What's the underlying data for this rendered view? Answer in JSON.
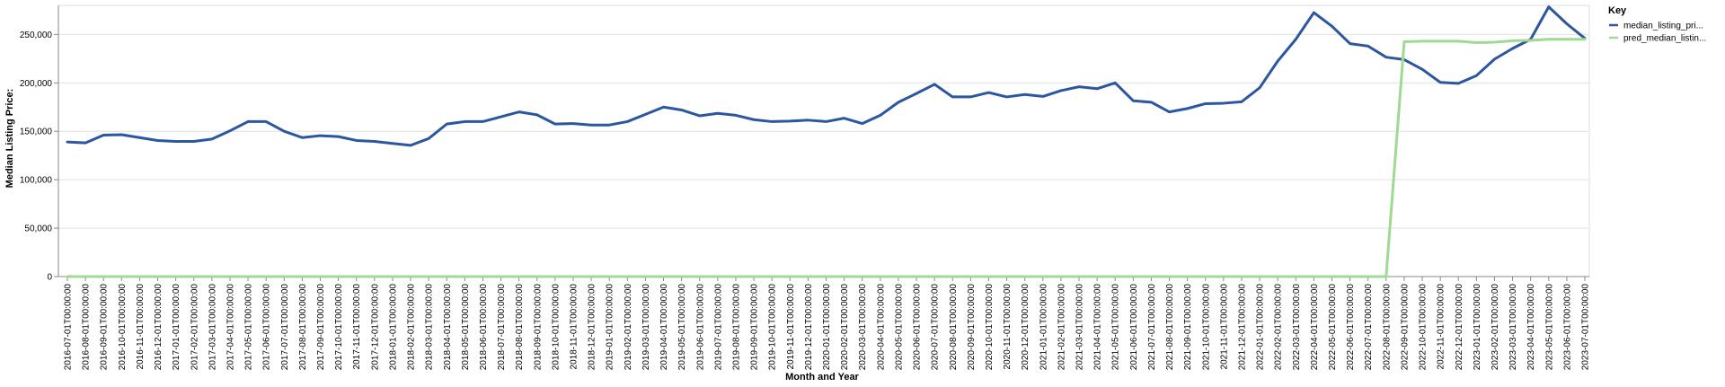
{
  "chart_data": {
    "type": "line",
    "title": "",
    "xlabel": "Month and Year",
    "ylabel": "Median Listing Price:",
    "ylim": [
      0,
      280000
    ],
    "y_ticks": [
      0,
      50000,
      100000,
      150000,
      200000,
      250000
    ],
    "y_tick_labels": [
      "0",
      "50,000",
      "100,000",
      "150,000",
      "200,000",
      "250,000"
    ],
    "grid": true,
    "legend": {
      "title": "Key",
      "position": "top-right"
    },
    "categories": [
      "2016-07-01T00:00:00",
      "2016-08-01T00:00:00",
      "2016-09-01T00:00:00",
      "2016-10-01T00:00:00",
      "2016-11-01T00:00:00",
      "2016-12-01T00:00:00",
      "2017-01-01T00:00:00",
      "2017-02-01T00:00:00",
      "2017-03-01T00:00:00",
      "2017-04-01T00:00:00",
      "2017-05-01T00:00:00",
      "2017-06-01T00:00:00",
      "2017-07-01T00:00:00",
      "2017-08-01T00:00:00",
      "2017-09-01T00:00:00",
      "2017-10-01T00:00:00",
      "2017-11-01T00:00:00",
      "2017-12-01T00:00:00",
      "2018-01-01T00:00:00",
      "2018-02-01T00:00:00",
      "2018-03-01T00:00:00",
      "2018-04-01T00:00:00",
      "2018-05-01T00:00:00",
      "2018-06-01T00:00:00",
      "2018-07-01T00:00:00",
      "2018-08-01T00:00:00",
      "2018-09-01T00:00:00",
      "2018-10-01T00:00:00",
      "2018-11-01T00:00:00",
      "2018-12-01T00:00:00",
      "2019-01-01T00:00:00",
      "2019-02-01T00:00:00",
      "2019-03-01T00:00:00",
      "2019-04-01T00:00:00",
      "2019-05-01T00:00:00",
      "2019-06-01T00:00:00",
      "2019-07-01T00:00:00",
      "2019-08-01T00:00:00",
      "2019-09-01T00:00:00",
      "2019-10-01T00:00:00",
      "2019-11-01T00:00:00",
      "2019-12-01T00:00:00",
      "2020-01-01T00:00:00",
      "2020-02-01T00:00:00",
      "2020-03-01T00:00:00",
      "2020-04-01T00:00:00",
      "2020-05-01T00:00:00",
      "2020-06-01T00:00:00",
      "2020-07-01T00:00:00",
      "2020-08-01T00:00:00",
      "2020-09-01T00:00:00",
      "2020-10-01T00:00:00",
      "2020-11-01T00:00:00",
      "2020-12-01T00:00:00",
      "2021-01-01T00:00:00",
      "2021-02-01T00:00:00",
      "2021-03-01T00:00:00",
      "2021-04-01T00:00:00",
      "2021-05-01T00:00:00",
      "2021-06-01T00:00:00",
      "2021-07-01T00:00:00",
      "2021-08-01T00:00:00",
      "2021-09-01T00:00:00",
      "2021-10-01T00:00:00",
      "2021-11-01T00:00:00",
      "2021-12-01T00:00:00",
      "2022-01-01T00:00:00",
      "2022-02-01T00:00:00",
      "2022-03-01T00:00:00",
      "2022-04-01T00:00:00",
      "2022-05-01T00:00:00",
      "2022-06-01T00:00:00",
      "2022-07-01T00:00:00",
      "2022-08-01T00:00:00",
      "2022-09-01T00:00:00",
      "2022-10-01T00:00:00",
      "2022-11-01T00:00:00",
      "2022-12-01T00:00:00",
      "2023-01-01T00:00:00",
      "2023-02-01T00:00:00",
      "2023-03-01T00:00:00",
      "2023-04-01T00:00:00",
      "2023-05-01T00:00:00",
      "2023-06-01T00:00:00",
      "2023-07-01T00:00:00"
    ],
    "series": [
      {
        "name": "median_listing_pri...",
        "color": "#2c57a0",
        "values": [
          139000,
          138000,
          146000,
          146500,
          143500,
          140500,
          139500,
          139500,
          142000,
          150500,
          160000,
          160000,
          150000,
          143500,
          145500,
          144500,
          140500,
          139500,
          137500,
          135500,
          142500,
          157500,
          160000,
          160000,
          165000,
          170000,
          167000,
          157500,
          158000,
          156500,
          156500,
          160000,
          167500,
          175000,
          172000,
          166000,
          168500,
          166500,
          162000,
          160000,
          160500,
          161500,
          160000,
          163500,
          158000,
          166500,
          180000,
          189000,
          198500,
          185500,
          185500,
          190000,
          185500,
          188000,
          186000,
          192000,
          196000,
          194000,
          200000,
          181500,
          180000,
          170000,
          173500,
          178500,
          179000,
          180500,
          195000,
          222500,
          245000,
          272500,
          258500,
          240500,
          238000,
          226500,
          224000,
          214000,
          200500,
          199500,
          207500,
          224500,
          235500,
          245000,
          278500,
          261000,
          246000
        ]
      },
      {
        "name": "pred_median_listin...",
        "color": "#a0d991",
        "values": [
          0,
          0,
          0,
          0,
          0,
          0,
          0,
          0,
          0,
          0,
          0,
          0,
          0,
          0,
          0,
          0,
          0,
          0,
          0,
          0,
          0,
          0,
          0,
          0,
          0,
          0,
          0,
          0,
          0,
          0,
          0,
          0,
          0,
          0,
          0,
          0,
          0,
          0,
          0,
          0,
          0,
          0,
          0,
          0,
          0,
          0,
          0,
          0,
          0,
          0,
          0,
          0,
          0,
          0,
          0,
          0,
          0,
          0,
          0,
          0,
          0,
          0,
          0,
          0,
          0,
          0,
          0,
          0,
          0,
          0,
          0,
          0,
          0,
          0,
          242500,
          243000,
          243000,
          243000,
          241500,
          242000,
          243500,
          244000,
          245000,
          245000,
          245000
        ]
      }
    ]
  }
}
